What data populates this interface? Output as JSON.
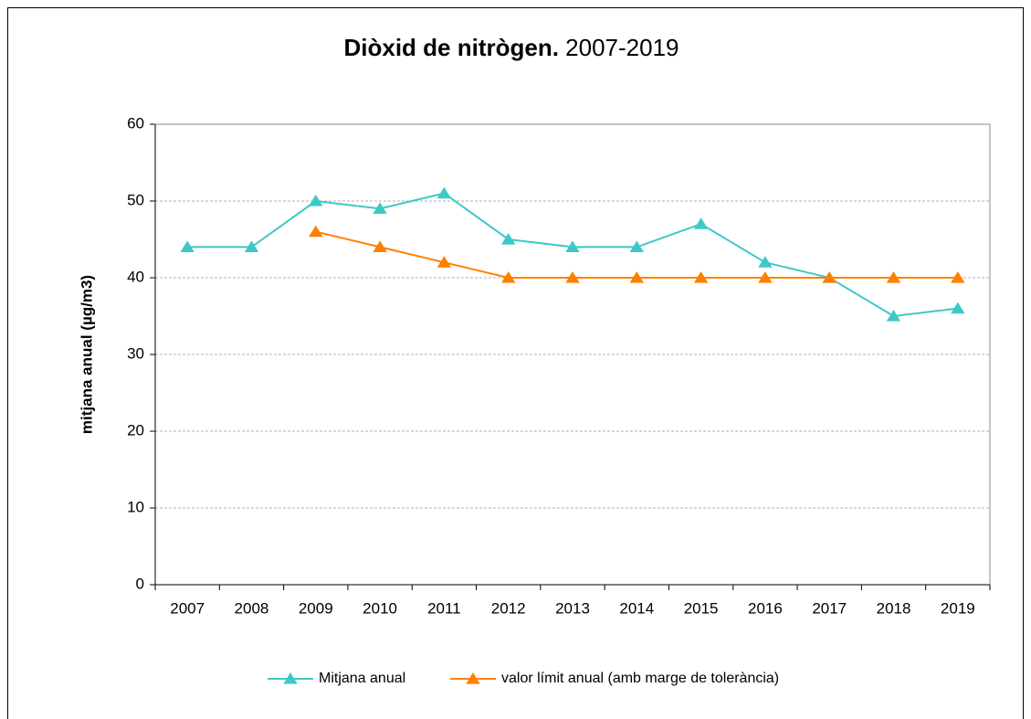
{
  "chart_data": {
    "type": "line",
    "title": [
      "Diòxid de nitrògen.",
      "2007-2019"
    ],
    "y_label": "mitjana anual (µg/m3)",
    "categories": [
      "2007",
      "2008",
      "2009",
      "2010",
      "2011",
      "2012",
      "2013",
      "2014",
      "2015",
      "2016",
      "2017",
      "2018",
      "2019"
    ],
    "series": [
      {
        "name": "Mitjana anual",
        "color": "#3ec9c6",
        "values": [
          44,
          44,
          50,
          49,
          51,
          45,
          44,
          44,
          47,
          42,
          40,
          35,
          36
        ]
      },
      {
        "name": "valor límit anual (amb marge de tolerància)",
        "color": "#ff8000",
        "values": [
          null,
          null,
          46,
          44,
          42,
          40,
          40,
          40,
          40,
          40,
          40,
          40,
          40
        ]
      }
    ],
    "ylim": [
      0,
      60
    ],
    "yticks": [
      0,
      10,
      20,
      30,
      40,
      50,
      60
    ],
    "grid": true,
    "legend": "bottom"
  }
}
